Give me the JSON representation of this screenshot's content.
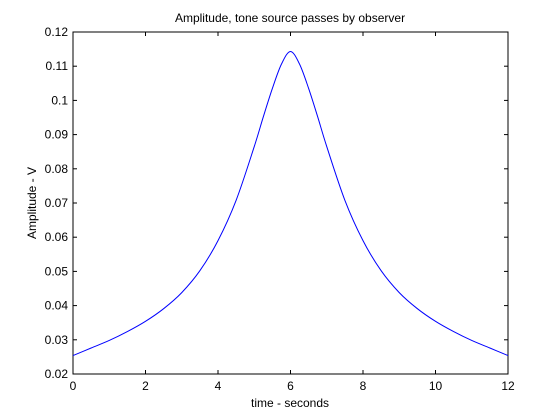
{
  "chart_data": {
    "type": "line",
    "title": "Amplitude, tone source passes by observer",
    "xlabel": "time - seconds",
    "ylabel": "Amplitude - V",
    "xlim": [
      0,
      12
    ],
    "ylim": [
      0.02,
      0.12
    ],
    "x_ticks": [
      0,
      2,
      4,
      6,
      8,
      10,
      12
    ],
    "y_ticks": [
      0.02,
      0.03,
      0.04,
      0.05,
      0.06,
      0.07,
      0.08,
      0.09,
      0.1,
      0.11,
      0.12
    ],
    "x_tick_labels": [
      "0",
      "2",
      "4",
      "6",
      "8",
      "10",
      "12"
    ],
    "y_tick_labels": [
      "0.02",
      "0.03",
      "0.04",
      "0.05",
      "0.06",
      "0.07",
      "0.08",
      "0.09",
      "0.1",
      "0.11",
      "0.12"
    ],
    "grid": false,
    "series": [
      {
        "color": "#0000ff",
        "x": [
          0,
          0.5,
          1,
          1.5,
          2,
          2.5,
          3,
          3.5,
          4,
          4.5,
          5,
          5.25,
          5.5,
          5.75,
          6,
          6.25,
          6.5,
          6.75,
          7,
          7.5,
          8,
          8.5,
          9,
          9.5,
          10,
          10.5,
          11,
          11.5,
          12
        ],
        "values": [
          0.0254,
          0.0276,
          0.0298,
          0.0324,
          0.0354,
          0.0391,
          0.0438,
          0.0502,
          0.059,
          0.0708,
          0.0865,
          0.0952,
          0.1035,
          0.1106,
          0.1143,
          0.1106,
          0.1035,
          0.0952,
          0.0865,
          0.0708,
          0.059,
          0.0502,
          0.0438,
          0.0391,
          0.0354,
          0.0324,
          0.0298,
          0.0276,
          0.0254
        ]
      }
    ]
  }
}
